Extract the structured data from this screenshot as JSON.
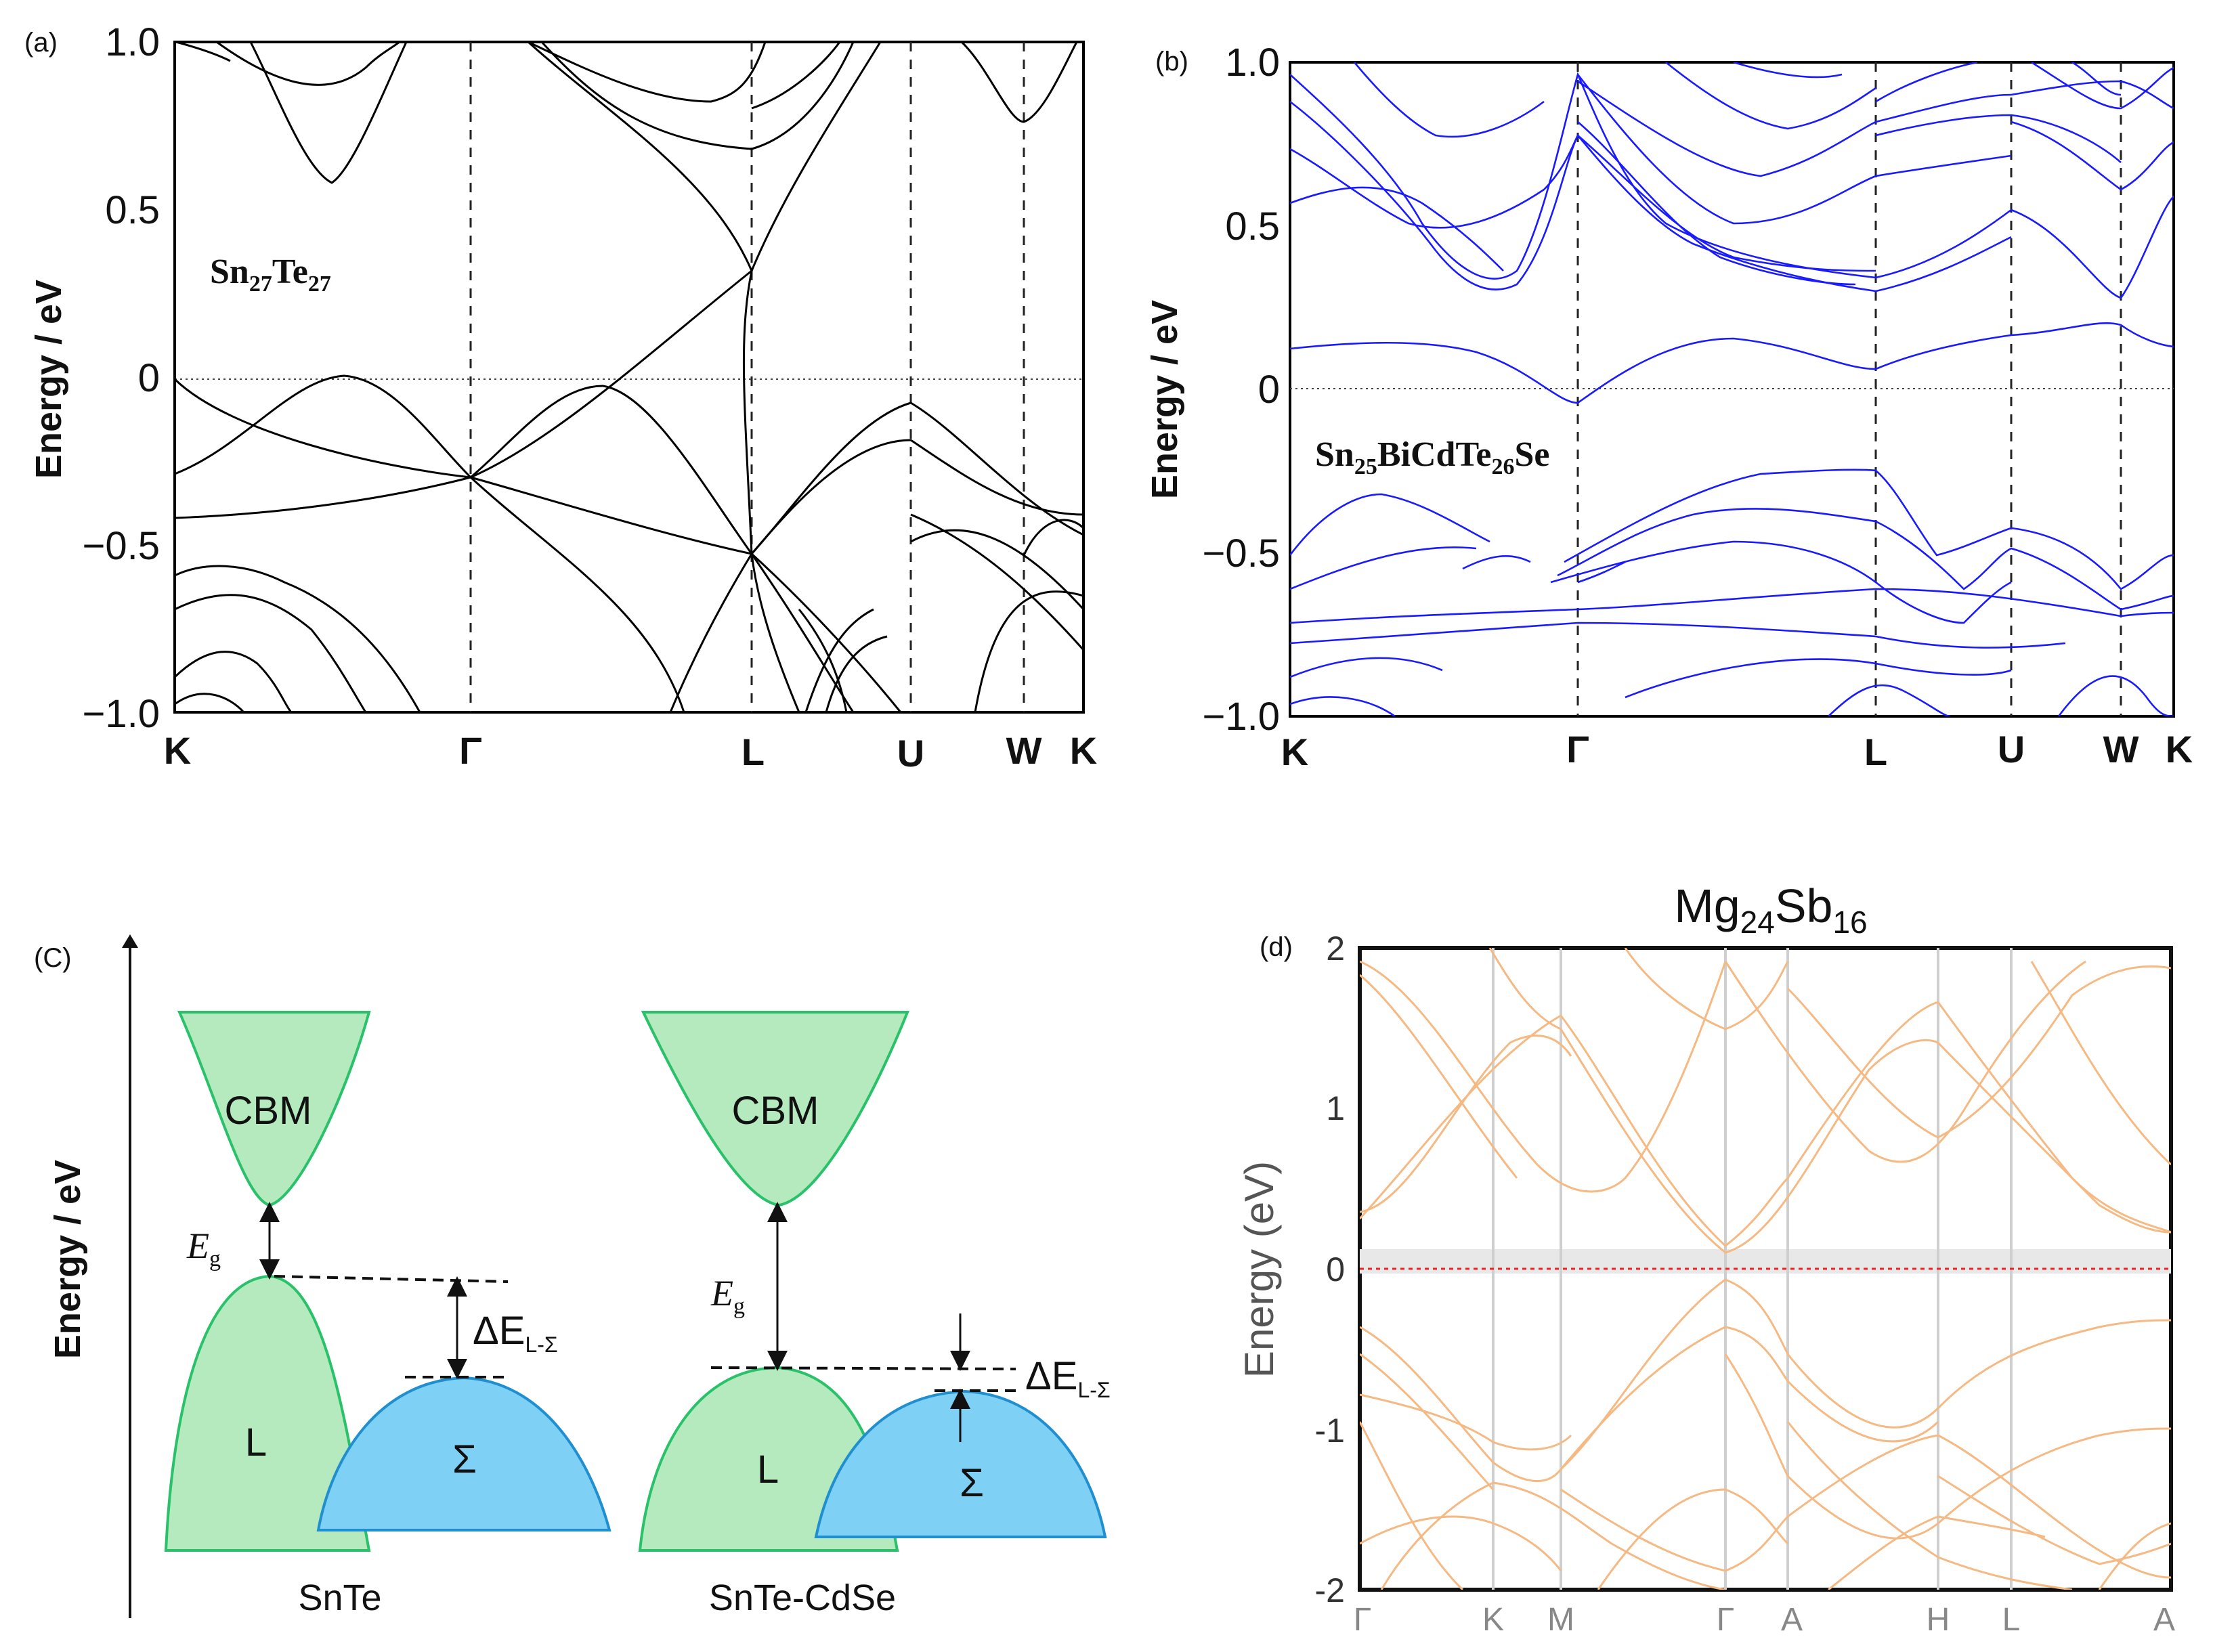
{
  "chart_data": [
    {
      "id": "a",
      "type": "line",
      "panel_label": "(a)",
      "title": "Sn27Te27",
      "title_parts": [
        "Sn",
        "27",
        "Te",
        "27"
      ],
      "ylabel": "Energy / eV",
      "ylim": [
        -1.0,
        1.0
      ],
      "yticks": [
        "1.0",
        "0.5",
        "0",
        "−0.5",
        "−1.0"
      ],
      "ytick_values": [
        1.0,
        0.5,
        0,
        -0.5,
        -1.0
      ],
      "kpoints": [
        "K",
        "Γ",
        "L",
        "U",
        "W",
        "K"
      ],
      "kpositions": [
        0,
        0.32,
        0.64,
        0.81,
        0.93,
        1.0
      ],
      "line_color": "#000000",
      "fermi_level": 0
    },
    {
      "id": "b",
      "type": "line",
      "panel_label": "(b)",
      "title": "Sn25BiCdTe26Se",
      "title_parts": [
        "Sn",
        "25",
        "BiCdTe",
        "26",
        "Se"
      ],
      "ylabel": "Energy / eV",
      "ylim": [
        -1.0,
        1.0
      ],
      "yticks": [
        "1.0",
        "0.5",
        "0",
        "−0.5",
        "−1.0"
      ],
      "ytick_values": [
        1.0,
        0.5,
        0,
        -0.5,
        -1.0
      ],
      "kpoints": [
        "K",
        "Γ",
        "L",
        "U",
        "W",
        "K"
      ],
      "kpositions": [
        0,
        0.33,
        0.66,
        0.81,
        0.94,
        1.0
      ],
      "line_color": "#1a1aff",
      "fermi_level": 0
    },
    {
      "id": "d",
      "type": "line",
      "panel_label": "(d)",
      "title": "Mg24Sb16",
      "title_parts": [
        "Mg",
        "24",
        "Sb",
        "16"
      ],
      "ylabel": "Energy (eV)",
      "ylim": [
        -2,
        2
      ],
      "yticks": [
        "2",
        "1",
        "0",
        "-1",
        "-2"
      ],
      "ytick_values": [
        2,
        1,
        0,
        -1,
        -2
      ],
      "kpoints": [
        "Γ",
        "K",
        "M",
        "Γ",
        "A",
        "H",
        "L",
        "A"
      ],
      "kpositions": [
        0,
        0.16,
        0.24,
        0.45,
        0.52,
        0.72,
        0.8,
        1.0
      ],
      "line_color": "#f5b983",
      "fermi_level": 0
    }
  ],
  "schematic": {
    "panel_label": "(C)",
    "ylabel": "Energy / eV",
    "left": {
      "name": "SnTe",
      "cbm_label": "CBM",
      "l_label": "L",
      "sigma_label": "Σ",
      "eg_base": "E",
      "eg_sub": "g",
      "delta_base": "ΔE",
      "delta_sub": "L-Σ"
    },
    "right": {
      "name": "SnTe-CdSe",
      "cbm_label": "CBM",
      "l_label": "L",
      "sigma_label": "Σ",
      "eg_base": "E",
      "eg_sub": "g",
      "delta_base": "ΔE",
      "delta_sub": "L-Σ"
    },
    "colors": {
      "green_fill": "#b4eabd",
      "green_stroke": "#29c16a",
      "blue_fill": "#7fd0f5",
      "blue_stroke": "#1f8fd0"
    }
  }
}
